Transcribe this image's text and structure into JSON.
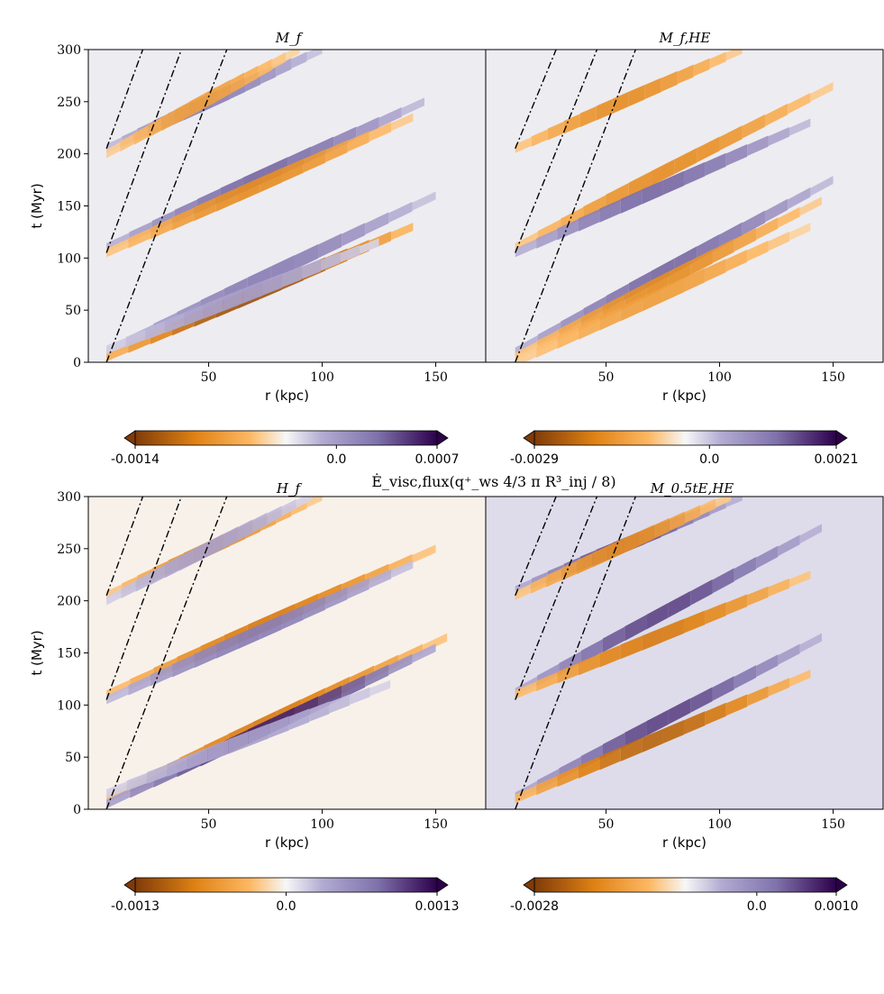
{
  "figure": {
    "suptitle": "Ė_visc,flux(q⁺_ws 4/3 π R³_inj / 8)",
    "axis": {
      "xlabel": "r (kpc)",
      "ylabel": "t (Myr)",
      "xticks": [
        50,
        100,
        150
      ],
      "yticks": [
        0,
        50,
        100,
        150,
        200,
        250,
        300
      ]
    }
  },
  "colors": {
    "negative_dark": "#7f3b08",
    "negative_mid": "#e08214",
    "negative_light": "#fdb863",
    "neutral": "#f7f7f7",
    "positive_light": "#b2abd2",
    "positive_mid": "#8073ac",
    "positive_dark": "#2d004b"
  },
  "chart_data": [
    {
      "type": "heatmap",
      "title": "M_f",
      "xlabel": "r (kpc)",
      "ylabel": "t (Myr)",
      "xlim": [
        0,
        175
      ],
      "ylim": [
        0,
        300
      ],
      "colorbar": {
        "min": -0.0014,
        "mid": 0.0,
        "max": 0.0007,
        "tick_labels": [
          "-0.0014",
          "0.0",
          "0.0007"
        ]
      },
      "guide_lines": [
        {
          "r0": 5,
          "t0": 0,
          "r1": 58,
          "t1": 300
        },
        {
          "r0": 5,
          "t0": 105,
          "r1": 38,
          "t1": 300
        },
        {
          "r0": 5,
          "t0": 205,
          "r1": 21,
          "t1": 300
        }
      ],
      "bands": [
        {
          "t_start": 10,
          "r_end": 150,
          "t_end": 160,
          "sign": "positive",
          "amp": 0.6
        },
        {
          "t_start": 5,
          "r_end": 140,
          "t_end": 130,
          "sign": "negative",
          "amp": 0.9
        },
        {
          "t_start": 12,
          "r_end": 125,
          "t_end": 115,
          "sign": "positive",
          "amp": 0.4
        },
        {
          "t_start": 110,
          "r_end": 145,
          "t_end": 250,
          "sign": "positive",
          "amp": 0.7
        },
        {
          "t_start": 105,
          "r_end": 140,
          "t_end": 235,
          "sign": "negative",
          "amp": 0.6
        },
        {
          "t_start": 205,
          "r_end": 100,
          "t_end": 300,
          "sign": "positive",
          "amp": 0.6
        },
        {
          "t_start": 200,
          "r_end": 90,
          "t_end": 300,
          "sign": "negative",
          "amp": 0.5
        }
      ]
    },
    {
      "type": "heatmap",
      "title": "M_f,HE",
      "xlabel": "r (kpc)",
      "ylabel": "",
      "xlim": [
        0,
        175
      ],
      "ylim": [
        0,
        300
      ],
      "colorbar": {
        "min": -0.0029,
        "mid": 0.0,
        "max": 0.0021,
        "tick_labels": [
          "-0.0029",
          "0.0",
          "0.0021"
        ]
      },
      "guide_lines": [
        {
          "r0": 10,
          "t0": 0,
          "r1": 63,
          "t1": 300
        },
        {
          "r0": 10,
          "t0": 105,
          "r1": 46,
          "t1": 300
        },
        {
          "r0": 10,
          "t0": 205,
          "r1": 28,
          "t1": 300
        }
      ],
      "bands": [
        {
          "t_start": 10,
          "r_end": 150,
          "t_end": 175,
          "sign": "positive",
          "amp": 0.7
        },
        {
          "t_start": 5,
          "r_end": 145,
          "t_end": 155,
          "sign": "negative",
          "amp": 0.6
        },
        {
          "t_start": 0,
          "r_end": 140,
          "t_end": 130,
          "sign": "negative",
          "amp": 0.5
        },
        {
          "t_start": 110,
          "r_end": 150,
          "t_end": 265,
          "sign": "negative",
          "amp": 0.6
        },
        {
          "t_start": 105,
          "r_end": 140,
          "t_end": 230,
          "sign": "positive",
          "amp": 0.7
        },
        {
          "t_start": 205,
          "r_end": 110,
          "t_end": 300,
          "sign": "negative",
          "amp": 0.6
        }
      ]
    },
    {
      "type": "heatmap",
      "title": "H_f",
      "xlabel": "r (kpc)",
      "ylabel": "t (Myr)",
      "xlim": [
        0,
        175
      ],
      "ylim": [
        0,
        300
      ],
      "colorbar": {
        "min": -0.0013,
        "mid": 0.0,
        "max": 0.0013,
        "tick_labels": [
          "-0.0013",
          "0.0",
          "0.0013"
        ]
      },
      "guide_lines": [
        {
          "r0": 5,
          "t0": 0,
          "r1": 58,
          "t1": 300
        },
        {
          "r0": 5,
          "t0": 105,
          "r1": 38,
          "t1": 300
        },
        {
          "r0": 5,
          "t0": 205,
          "r1": 21,
          "t1": 300
        }
      ],
      "bands": [
        {
          "t_start": 10,
          "r_end": 155,
          "t_end": 165,
          "sign": "negative",
          "amp": 0.7
        },
        {
          "t_start": 5,
          "r_end": 150,
          "t_end": 155,
          "sign": "positive",
          "amp": 0.9
        },
        {
          "t_start": 15,
          "r_end": 130,
          "t_end": 120,
          "sign": "positive",
          "amp": 0.4
        },
        {
          "t_start": 110,
          "r_end": 150,
          "t_end": 250,
          "sign": "negative",
          "amp": 0.7
        },
        {
          "t_start": 105,
          "r_end": 140,
          "t_end": 235,
          "sign": "positive",
          "amp": 0.6
        },
        {
          "t_start": 205,
          "r_end": 100,
          "t_end": 300,
          "sign": "negative",
          "amp": 0.6
        },
        {
          "t_start": 200,
          "r_end": 95,
          "t_end": 300,
          "sign": "positive",
          "amp": 0.4
        }
      ]
    },
    {
      "type": "heatmap",
      "title": "M_0.5tE,HE",
      "xlabel": "r (kpc)",
      "ylabel": "",
      "xlim": [
        0,
        175
      ],
      "ylim": [
        0,
        300
      ],
      "colorbar": {
        "min": -0.0028,
        "mid": 0.0,
        "max": 0.001,
        "tick_labels": [
          "-0.0028",
          "0.0",
          "0.0010"
        ]
      },
      "guide_lines": [
        {
          "r0": 10,
          "t0": 0,
          "r1": 63,
          "t1": 300
        },
        {
          "r0": 10,
          "t0": 105,
          "r1": 46,
          "t1": 300
        },
        {
          "r0": 10,
          "t0": 205,
          "r1": 28,
          "t1": 300
        }
      ],
      "bands": [
        {
          "t_start": 12,
          "r_end": 145,
          "t_end": 165,
          "sign": "positive",
          "amp": 0.8
        },
        {
          "t_start": 10,
          "r_end": 140,
          "t_end": 130,
          "sign": "negative",
          "amp": 0.8
        },
        {
          "t_start": 112,
          "r_end": 145,
          "t_end": 270,
          "sign": "positive",
          "amp": 0.8
        },
        {
          "t_start": 110,
          "r_end": 140,
          "t_end": 225,
          "sign": "negative",
          "amp": 0.7
        },
        {
          "t_start": 210,
          "r_end": 110,
          "t_end": 300,
          "sign": "positive",
          "amp": 0.8
        },
        {
          "t_start": 205,
          "r_end": 105,
          "t_end": 300,
          "sign": "negative",
          "amp": 0.6
        }
      ]
    }
  ]
}
